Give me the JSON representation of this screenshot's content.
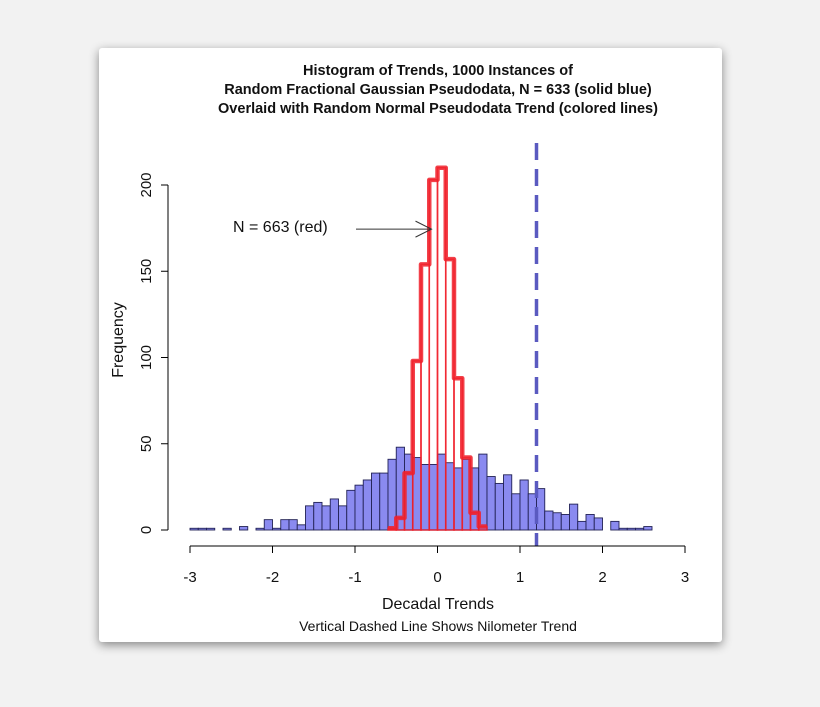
{
  "chart_data": {
    "type": "bar",
    "title": [
      "Histogram of Trends, 1000 Instances of",
      "Random Fractional Gaussian Pseudodata, N = 633 (solid blue)",
      "Overlaid with Random Normal Pseudodata Trend (colored lines)"
    ],
    "xlabel": "Decadal Trends",
    "ylabel": "Frequency",
    "subtitle": "Vertical Dashed Line Shows Nilometer Trend",
    "xlim": [
      -3,
      3
    ],
    "ylim": [
      0,
      200
    ],
    "xticks": [
      "-3",
      "-2",
      "-1",
      "0",
      "1",
      "2",
      "3"
    ],
    "yticks": [
      "0",
      "50",
      "100",
      "150",
      "200"
    ],
    "bin_width": 0.1,
    "series": [
      {
        "style": "solid blue",
        "bin_start": -3.0,
        "color": "#8a8af0",
        "values": [
          1,
          1,
          1,
          0,
          1,
          0,
          2,
          0,
          1,
          6,
          1,
          6,
          6,
          3,
          14,
          16,
          14,
          18,
          14,
          23,
          26,
          29,
          33,
          33,
          41,
          48,
          44,
          42,
          38,
          38,
          44,
          39,
          36,
          41,
          36,
          44,
          31,
          27,
          32,
          21,
          29,
          21,
          24,
          11,
          10,
          9,
          15,
          5,
          9,
          7,
          0,
          5,
          1,
          1,
          1,
          2,
          0,
          0,
          0,
          0
        ]
      },
      {
        "style": "red outline",
        "bin_start": -0.6,
        "color": "#f0202a",
        "values": [
          1,
          7,
          33,
          98,
          154,
          203,
          210,
          157,
          88,
          42,
          10,
          2
        ]
      }
    ],
    "vline": {
      "x": 1.2,
      "style": "dashed",
      "color": "#5a5ac0"
    },
    "annotation": {
      "text": "N = 663 (red)",
      "arrow_to": [
        0,
        175
      ]
    },
    "grid": false
  }
}
